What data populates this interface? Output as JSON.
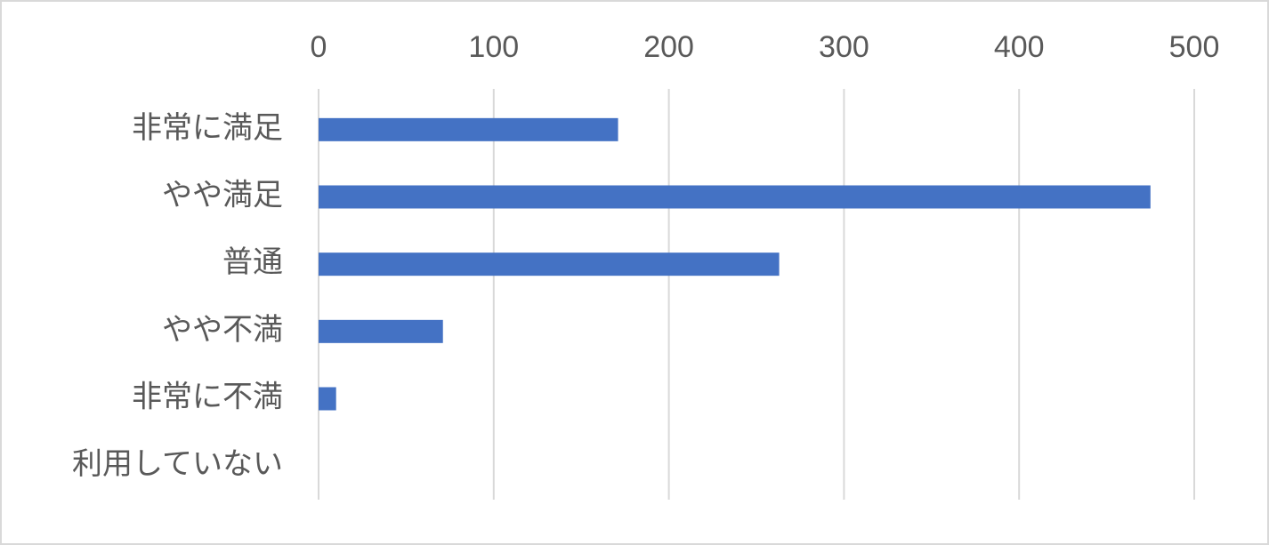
{
  "chart_data": {
    "type": "bar",
    "orientation": "horizontal",
    "categories": [
      "非常に満足",
      "やや満足",
      "普通",
      "やや不満",
      "非常に不満",
      "利用していない"
    ],
    "values": [
      171,
      475,
      263,
      71,
      10,
      0
    ],
    "color": "#4472c4",
    "xlim": [
      0,
      500
    ],
    "xticks": [
      0,
      100,
      200,
      300,
      400,
      500
    ],
    "grid": true
  }
}
